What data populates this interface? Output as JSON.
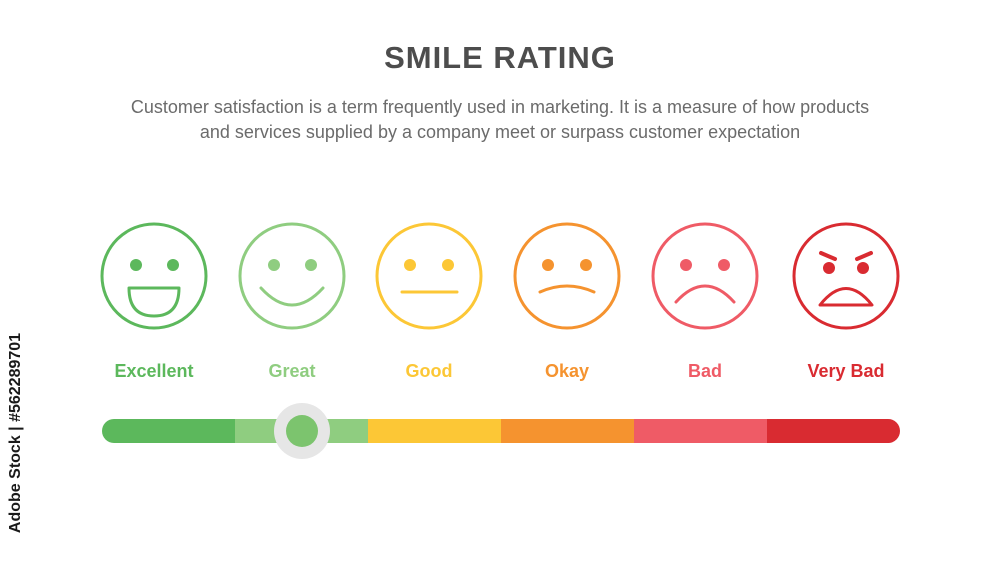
{
  "title": "SMILE RATING",
  "subtitle_line1": "Customer satisfaction is a term frequently used in marketing. It is a measure of how products",
  "subtitle_line2": "and services supplied by a company meet or surpass customer expectation",
  "ratings": [
    {
      "label": "Excellent",
      "color": "#5cb85c",
      "icon": "grin-face-icon"
    },
    {
      "label": "Great",
      "color": "#8fcd80",
      "icon": "smile-face-icon"
    },
    {
      "label": "Good",
      "color": "#fcc736",
      "icon": "neutral-face-icon"
    },
    {
      "label": "Okay",
      "color": "#f5932f",
      "icon": "slight-frown-face-icon"
    },
    {
      "label": "Bad",
      "color": "#ef5b66",
      "icon": "frown-face-icon"
    },
    {
      "label": "Very Bad",
      "color": "#d92b31",
      "icon": "angry-face-icon"
    }
  ],
  "slider": {
    "selected_index": 1,
    "selected_label": "Great"
  },
  "watermark": "Adobe Stock | #562289701"
}
